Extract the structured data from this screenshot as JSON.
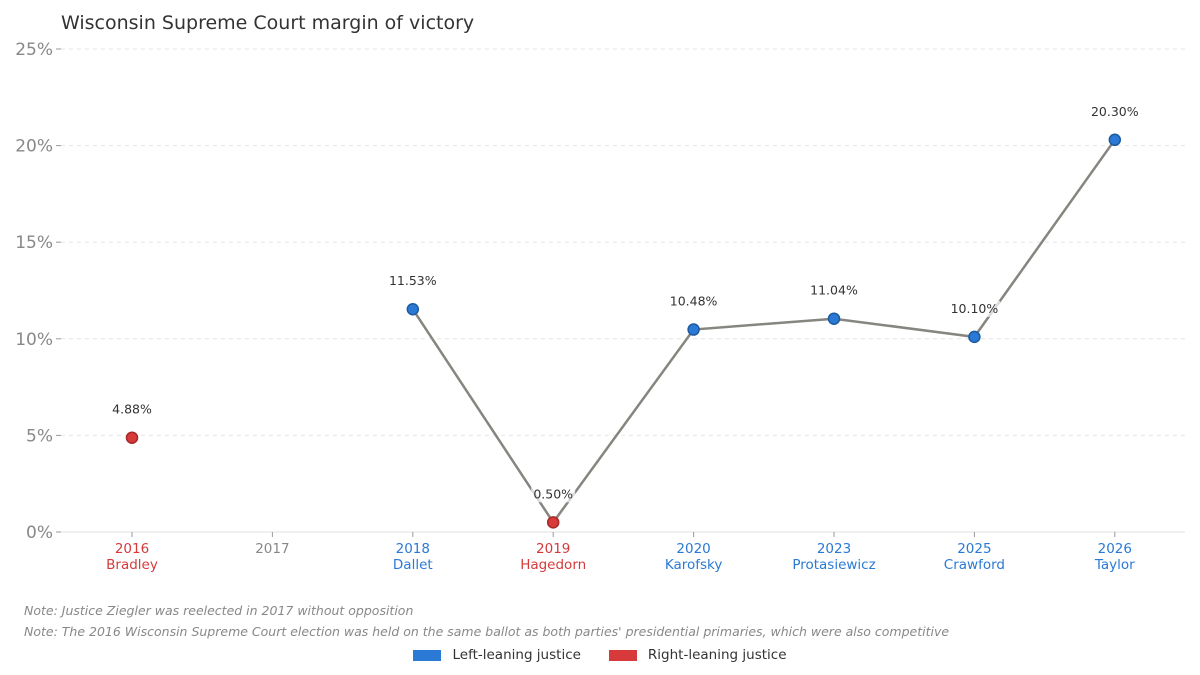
{
  "chart_data": {
    "type": "line",
    "title": "Wisconsin Supreme Court margin of victory",
    "categories": [
      "2016",
      "2017",
      "2018",
      "2019",
      "2020",
      "2023",
      "2025",
      "2026"
    ],
    "candidates": [
      "Bradley",
      "",
      "Dallet",
      "Hagedorn",
      "Karofsky",
      "Protasiewicz",
      "Crawford",
      "Taylor"
    ],
    "leaning": [
      "right",
      "none",
      "left",
      "right",
      "left",
      "left",
      "left",
      "left"
    ],
    "values": [
      4.88,
      null,
      11.53,
      0.5,
      10.48,
      11.04,
      10.1,
      20.3
    ],
    "data_labels": [
      "4.88%",
      "",
      "11.53%",
      "0.50%",
      "10.48%",
      "11.04%",
      "10.10%",
      "20.30%"
    ],
    "ylim": [
      0,
      25
    ],
    "yticks": [
      0,
      5,
      10,
      15,
      20,
      25
    ],
    "ytick_labels": [
      "0%",
      "5%",
      "10%",
      "15%",
      "20%",
      "25%"
    ],
    "grid": "horizontal dashed",
    "legend_position": "bottom-center",
    "legend": [
      {
        "label": "Left-leaning justice",
        "color": "#2a7ad5"
      },
      {
        "label": "Right-leaning justice",
        "color": "#d63a3a"
      }
    ],
    "colors": {
      "left": "#2a7ad5",
      "right": "#d63a3a",
      "none": "#888888",
      "line": "#86857f"
    }
  },
  "notes": [
    "Note: Justice Ziegler was reelected in 2017 without opposition",
    "Note: The 2016 Wisconsin Supreme Court election was held on the same ballot as both parties' presidential primaries, which were also competitive"
  ]
}
